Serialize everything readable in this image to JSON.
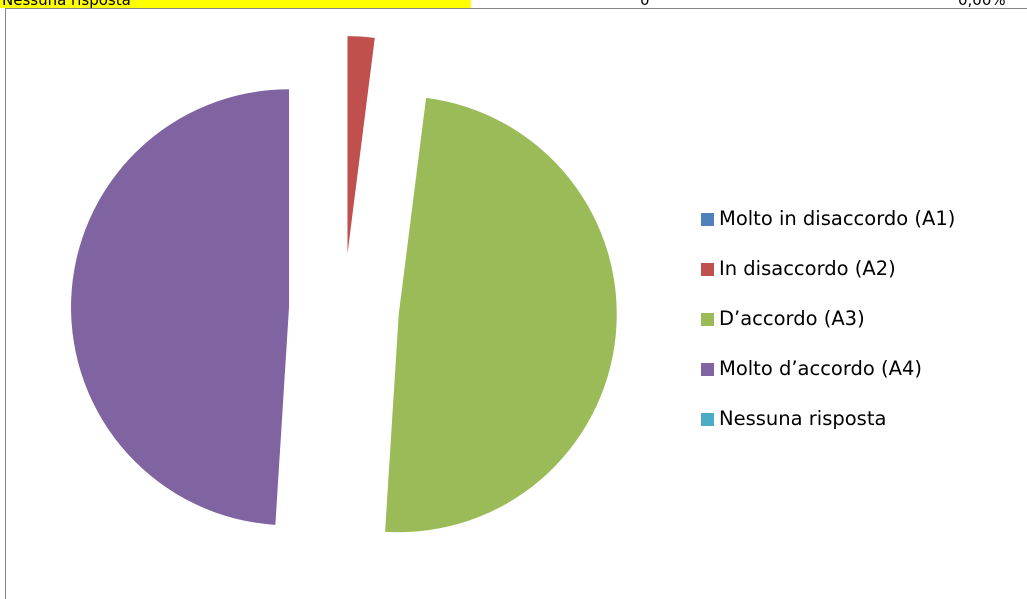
{
  "header": {
    "label": "Nessuna risposta",
    "count": "0",
    "percent": "0,00%"
  },
  "chart_data": {
    "type": "pie",
    "title": "",
    "exploded": true,
    "categories": [
      "Molto in disaccordo (A1)",
      "In disaccordo (A2)",
      "D’accordo (A3)",
      "Molto d’accordo (A4)",
      "Nessuna risposta"
    ],
    "values": [
      0,
      2,
      49,
      49,
      0
    ],
    "colors": [
      "#4f81bd",
      "#c0504d",
      "#9bbb59",
      "#8064a2",
      "#4bacc6"
    ],
    "legend_position": "right"
  }
}
